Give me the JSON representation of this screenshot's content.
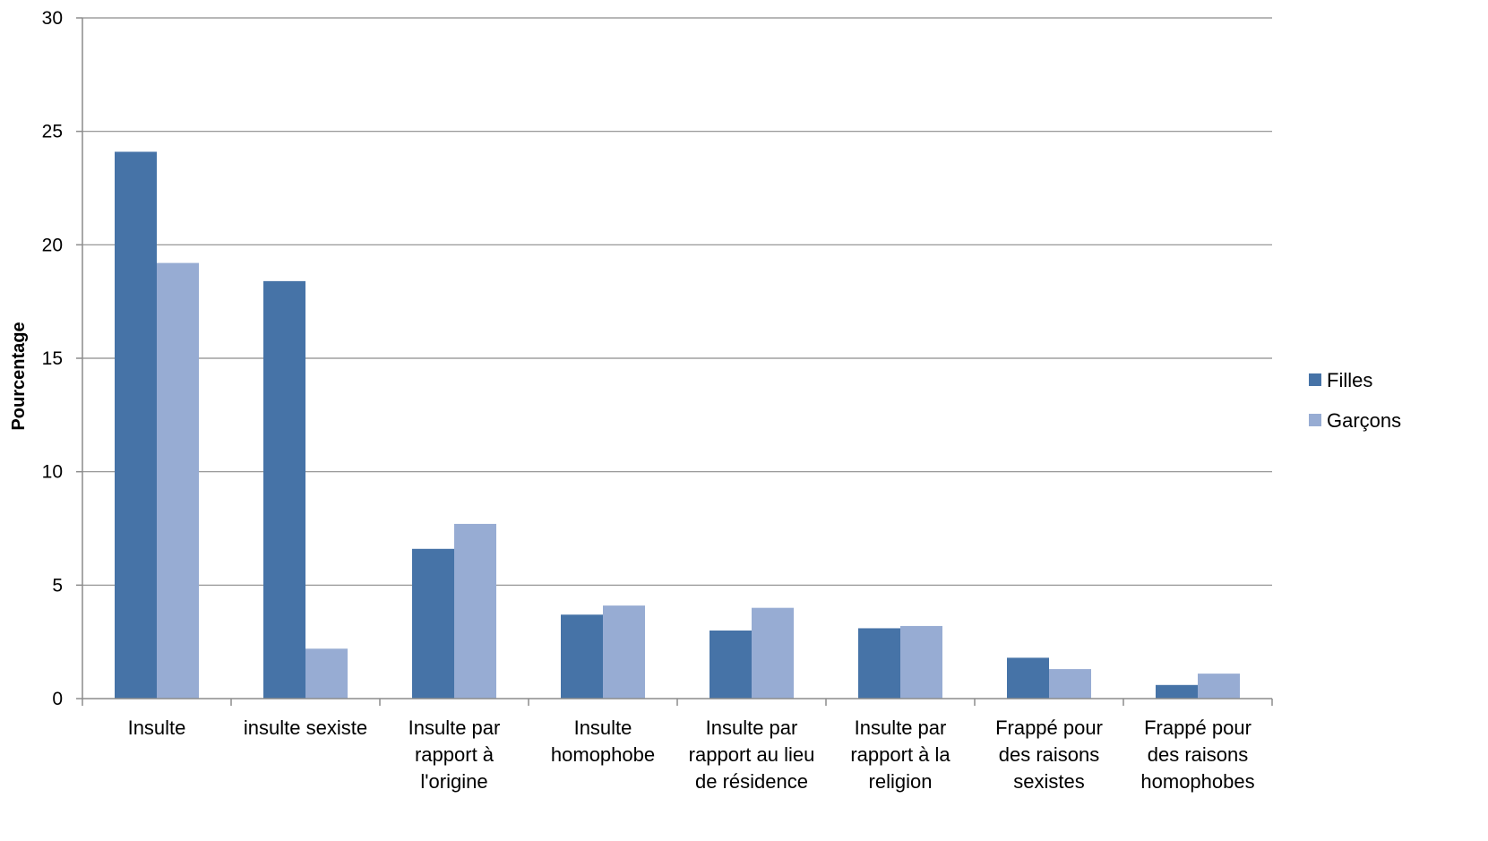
{
  "chart_data": {
    "type": "bar",
    "title": "",
    "xlabel": "",
    "ylabel": "Pourcentage",
    "ylim": [
      0,
      30
    ],
    "yticks": [
      0,
      5,
      10,
      15,
      20,
      25,
      30
    ],
    "grid": true,
    "legend_position": "right",
    "categories": [
      [
        "Insulte"
      ],
      [
        "insulte sexiste"
      ],
      [
        "Insulte par",
        "rapport à",
        "l'origine"
      ],
      [
        "Insulte",
        "homophobe"
      ],
      [
        "Insulte par",
        "rapport au lieu",
        "de résidence"
      ],
      [
        "Insulte par",
        "rapport à la",
        "religion"
      ],
      [
        "Frappé pour",
        "des raisons",
        "sexistes"
      ],
      [
        "Frappé pour",
        "des raisons",
        "homophobes"
      ]
    ],
    "series": [
      {
        "name": "Filles",
        "color": "#4673A7",
        "values": [
          24.1,
          18.4,
          6.6,
          3.7,
          3.0,
          3.1,
          1.8,
          0.6
        ]
      },
      {
        "name": "Garçons",
        "color": "#97ACD3",
        "values": [
          19.2,
          2.2,
          7.7,
          4.1,
          4.0,
          3.2,
          1.3,
          1.1
        ]
      }
    ]
  }
}
